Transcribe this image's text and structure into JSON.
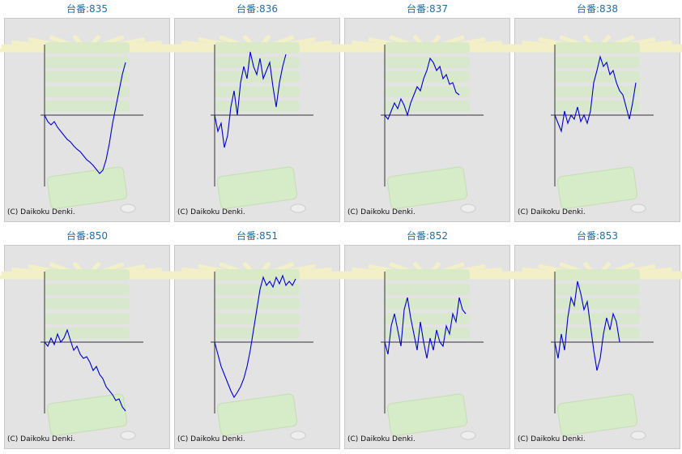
{
  "chart_data": [
    {
      "type": "line",
      "title": "台番:835",
      "annotation": "(C) Daikoku Denki.",
      "color": "#0000cc",
      "ylim": [
        -88,
        87
      ],
      "values": [
        0,
        -8,
        -12,
        -8,
        -15,
        -20,
        -25,
        -30,
        -33,
        -38,
        -42,
        -45,
        -50,
        -55,
        -58,
        -62,
        -67,
        -72,
        -68,
        -55,
        -35,
        -10,
        10,
        30,
        50,
        65
      ]
    },
    {
      "type": "line",
      "title": "台番:836",
      "annotation": "(C) Daikoku Denki.",
      "color": "#0000cc",
      "ylim": [
        -88,
        87
      ],
      "values": [
        0,
        -20,
        -10,
        -40,
        -25,
        10,
        30,
        0,
        40,
        60,
        45,
        78,
        60,
        50,
        70,
        45,
        55,
        65,
        35,
        10,
        40,
        60,
        75
      ]
    },
    {
      "type": "line",
      "title": "台番:837",
      "annotation": "(C) Daikoku Denki.",
      "color": "#0000cc",
      "ylim": [
        -88,
        87
      ],
      "values": [
        0,
        -5,
        5,
        15,
        8,
        20,
        12,
        0,
        15,
        25,
        35,
        30,
        45,
        55,
        70,
        65,
        55,
        60,
        45,
        50,
        38,
        40,
        28,
        25
      ]
    },
    {
      "type": "line",
      "title": "台番:838",
      "annotation": "(C) Daikoku Denki.",
      "color": "#0000cc",
      "ylim": [
        -88,
        87
      ],
      "values": [
        0,
        -10,
        -20,
        5,
        -10,
        0,
        -5,
        10,
        -8,
        0,
        -10,
        5,
        40,
        55,
        72,
        60,
        65,
        50,
        55,
        40,
        30,
        25,
        10,
        -5,
        15,
        40
      ]
    },
    {
      "type": "line",
      "title": "台番:850",
      "annotation": "(C) Daikoku Denki.",
      "color": "#0000cc",
      "ylim": [
        -88,
        87
      ],
      "values": [
        0,
        -5,
        5,
        -3,
        10,
        0,
        5,
        15,
        2,
        -10,
        -5,
        -15,
        -20,
        -18,
        -25,
        -35,
        -30,
        -40,
        -45,
        -55,
        -60,
        -65,
        -72,
        -70,
        -80,
        -85
      ]
    },
    {
      "type": "line",
      "title": "台番:851",
      "annotation": "(C) Daikoku Denki.",
      "color": "#0000cc",
      "ylim": [
        -88,
        87
      ],
      "values": [
        0,
        -15,
        -30,
        -40,
        -50,
        -60,
        -68,
        -62,
        -55,
        -45,
        -30,
        -10,
        15,
        40,
        65,
        80,
        70,
        75,
        68,
        80,
        72,
        82,
        70,
        75,
        70,
        78
      ]
    },
    {
      "type": "line",
      "title": "台番:852",
      "annotation": "(C) Daikoku Denki.",
      "color": "#0000cc",
      "ylim": [
        -88,
        87
      ],
      "values": [
        0,
        -15,
        20,
        35,
        15,
        -5,
        40,
        55,
        30,
        10,
        -10,
        25,
        0,
        -20,
        5,
        -10,
        15,
        0,
        -5,
        20,
        10,
        35,
        25,
        55,
        40,
        35
      ]
    },
    {
      "type": "line",
      "title": "台番:853",
      "annotation": "(C) Daikoku Denki.",
      "color": "#0000cc",
      "ylim": [
        -88,
        87
      ],
      "values": [
        0,
        -20,
        10,
        -10,
        30,
        55,
        45,
        75,
        60,
        40,
        50,
        20,
        -10,
        -35,
        -20,
        10,
        30,
        15,
        35,
        25,
        0
      ]
    }
  ]
}
